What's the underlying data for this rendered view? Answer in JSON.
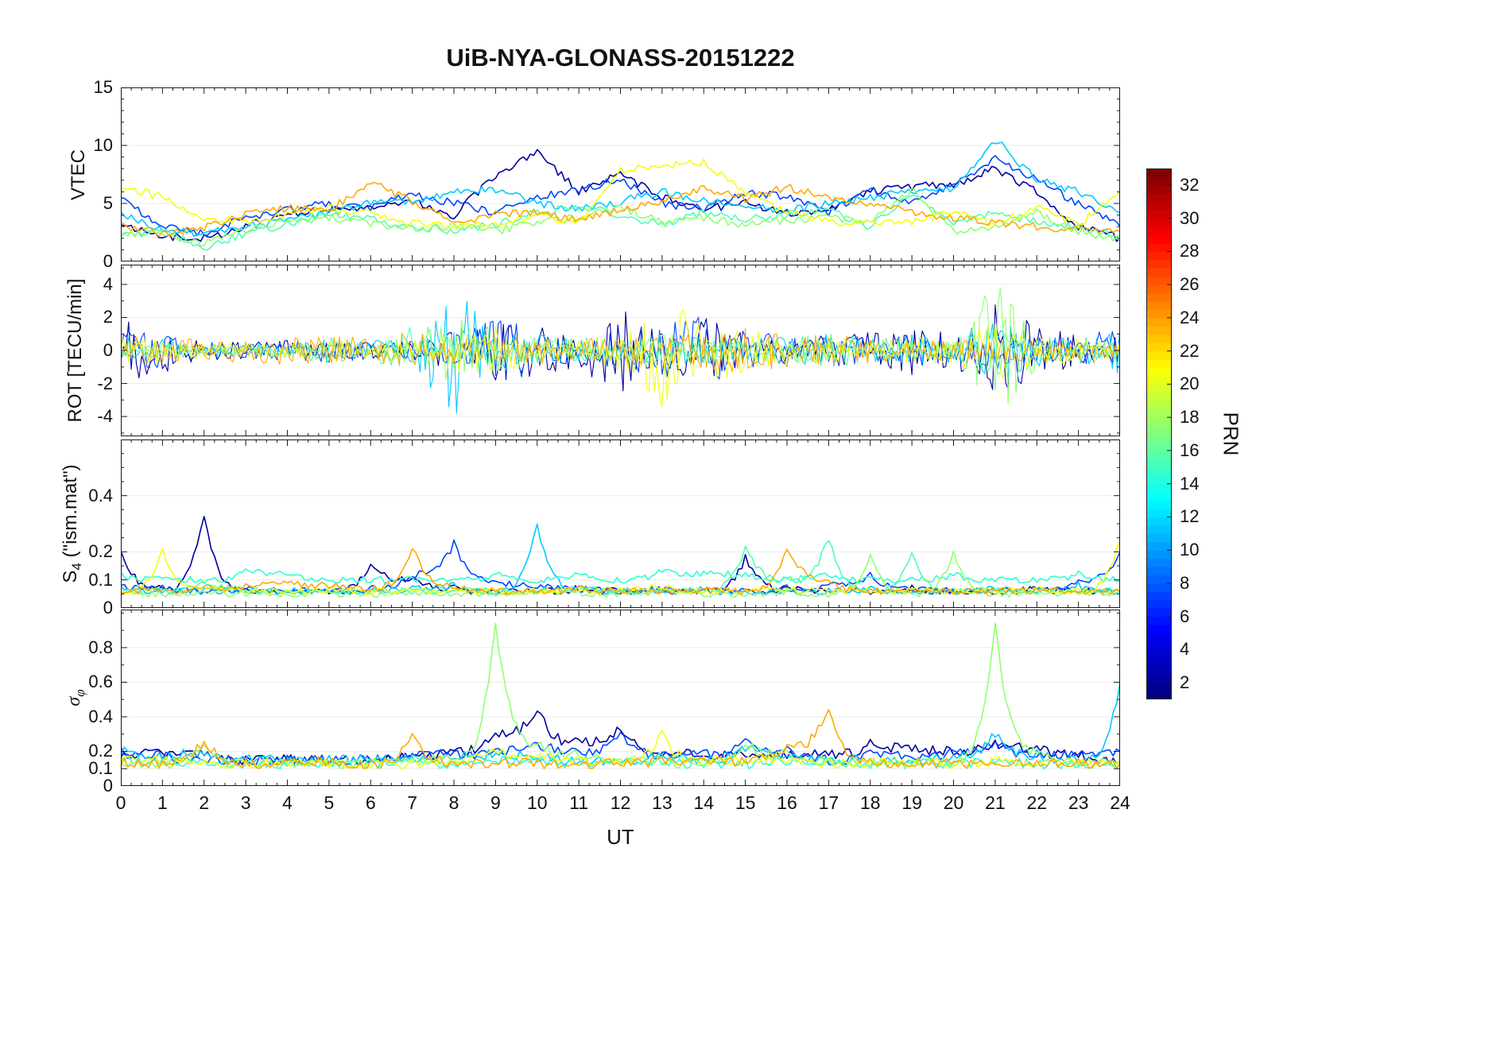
{
  "chart_data": {
    "type": "line",
    "title": "UiB-NYA-GLONASS-20151222",
    "xlabel": "UT",
    "xlim": [
      0,
      24
    ],
    "xticks": [
      0,
      1,
      2,
      3,
      4,
      5,
      6,
      7,
      8,
      9,
      10,
      11,
      12,
      13,
      14,
      15,
      16,
      17,
      18,
      19,
      20,
      21,
      22,
      23,
      24
    ],
    "x_start": 0,
    "x_step": 1,
    "colorbar": {
      "label": "PRN",
      "colormap": "jet",
      "range": [
        1,
        33
      ],
      "ticks": [
        2,
        4,
        6,
        8,
        10,
        12,
        14,
        16,
        18,
        20,
        22,
        24,
        26,
        28,
        30,
        32
      ]
    },
    "panels": [
      {
        "id": "vtec",
        "ylabel": {
          "main": "VTEC",
          "sub": "",
          "suffix": ""
        },
        "ylim": [
          0,
          15
        ],
        "yticks": [
          0,
          5,
          10,
          15
        ],
        "yminor": 1,
        "jitter": 0.35,
        "interp": "linear",
        "xlabels": false,
        "series": [
          {
            "prn": 2,
            "y": [
              3.0,
              2.2,
              2.0,
              3.0,
              4.2,
              4.5,
              4.8,
              5.2,
              4.0,
              7.5,
              9.5,
              6.0,
              7.5,
              5.5,
              4.5,
              5.0,
              4.2,
              4.5,
              6.0,
              6.5,
              6.5,
              8.0,
              6.0,
              3.0,
              2.0
            ]
          },
          {
            "prn": 7,
            "y": [
              5.5,
              3.0,
              2.5,
              3.8,
              4.5,
              5.0,
              4.6,
              5.8,
              5.0,
              4.2,
              5.5,
              6.2,
              7.0,
              5.0,
              4.5,
              6.0,
              5.5,
              4.2,
              6.2,
              5.0,
              6.5,
              9.0,
              7.0,
              5.0,
              3.0
            ]
          },
          {
            "prn": 11,
            "y": [
              4.0,
              2.8,
              2.4,
              3.0,
              3.6,
              4.2,
              5.0,
              5.2,
              6.0,
              6.2,
              5.0,
              4.5,
              5.2,
              6.0,
              5.2,
              4.8,
              4.4,
              5.0,
              5.5,
              6.0,
              6.2,
              10.5,
              7.0,
              6.0,
              4.2
            ]
          },
          {
            "prn": 15,
            "y": [
              2.2,
              2.6,
              1.2,
              2.4,
              3.2,
              4.0,
              3.6,
              3.0,
              2.6,
              3.2,
              4.2,
              4.8,
              4.0,
              3.2,
              4.2,
              3.6,
              4.0,
              4.4,
              3.0,
              5.8,
              3.2,
              4.2,
              3.4,
              3.0,
              2.2
            ]
          },
          {
            "prn": 17,
            "y": [
              2.6,
              2.2,
              1.6,
              2.8,
              3.4,
              3.8,
              3.2,
              2.8,
              3.0,
              2.6,
              3.4,
              3.8,
              4.6,
              3.4,
              3.8,
              3.2,
              3.6,
              3.8,
              3.4,
              6.2,
              2.6,
              3.0,
              4.2,
              2.6,
              1.8
            ]
          },
          {
            "prn": 20,
            "y": [
              6.5,
              5.5,
              3.8,
              3.4,
              4.0,
              4.6,
              4.2,
              3.2,
              3.0,
              3.2,
              4.0,
              3.4,
              7.8,
              8.2,
              8.6,
              5.8,
              4.2,
              3.4,
              3.2,
              3.4,
              4.2,
              3.2,
              4.6,
              3.2,
              6.0
            ]
          },
          {
            "prn": 23,
            "y": [
              3.2,
              2.4,
              3.0,
              4.2,
              4.6,
              4.4,
              6.8,
              5.2,
              3.4,
              4.0,
              4.2,
              3.6,
              4.4,
              5.2,
              6.2,
              5.4,
              6.4,
              5.6,
              5.0,
              4.2,
              3.8,
              3.4,
              3.0,
              2.8,
              2.6
            ]
          }
        ]
      },
      {
        "id": "rot",
        "ylabel": {
          "main": "ROT [TECU/min]",
          "sub": "",
          "suffix": ""
        },
        "ylim": [
          -5.2,
          5.2
        ],
        "yticks": [
          -4,
          -2,
          0,
          2,
          4
        ],
        "yminor": 1,
        "mode": "amp",
        "interp": "linear",
        "xlabels": false,
        "series": [
          {
            "prn": 2,
            "amp": [
              1.8,
              1.5,
              0.6,
              0.5,
              0.6,
              0.5,
              0.5,
              0.6,
              1.2,
              2.0,
              1.5,
              1.0,
              3.0,
              1.2,
              2.0,
              1.0,
              0.8,
              1.0,
              1.2,
              1.5,
              1.0,
              3.5,
              1.5,
              1.0,
              0.8
            ]
          },
          {
            "prn": 7,
            "amp": [
              1.5,
              1.0,
              0.5,
              0.5,
              0.6,
              0.8,
              0.5,
              0.6,
              1.0,
              2.4,
              1.2,
              0.8,
              1.2,
              1.5,
              2.2,
              1.5,
              0.8,
              1.0,
              0.8,
              1.0,
              0.8,
              1.2,
              0.8,
              0.8,
              1.5
            ]
          },
          {
            "prn": 11,
            "amp": [
              0.8,
              0.8,
              0.4,
              0.4,
              0.5,
              0.5,
              0.6,
              0.8,
              4.2,
              1.5,
              1.0,
              0.8,
              0.8,
              1.0,
              0.8,
              0.8,
              0.8,
              1.0,
              0.8,
              1.0,
              0.8,
              2.2,
              1.0,
              0.8,
              1.4
            ]
          },
          {
            "prn": 15,
            "amp": [
              0.5,
              0.5,
              0.4,
              0.4,
              0.5,
              0.8,
              0.5,
              1.8,
              0.8,
              1.0,
              0.8,
              0.6,
              0.6,
              0.8,
              0.6,
              0.6,
              0.8,
              1.0,
              0.8,
              0.8,
              0.6,
              1.6,
              0.8,
              0.6,
              0.5
            ]
          },
          {
            "prn": 17,
            "amp": [
              0.5,
              0.5,
              0.4,
              0.4,
              0.4,
              0.6,
              0.5,
              0.8,
              2.0,
              1.4,
              0.8,
              0.6,
              0.8,
              1.2,
              0.8,
              0.6,
              0.8,
              0.8,
              0.6,
              0.8,
              0.6,
              4.5,
              1.0,
              0.6,
              0.5
            ]
          },
          {
            "prn": 20,
            "amp": [
              0.8,
              1.0,
              0.5,
              0.5,
              0.5,
              0.6,
              0.5,
              0.6,
              1.4,
              1.6,
              0.8,
              0.6,
              1.2,
              3.8,
              2.0,
              1.4,
              0.8,
              0.8,
              0.6,
              0.8,
              0.8,
              2.0,
              0.8,
              0.8,
              0.6
            ]
          },
          {
            "prn": 23,
            "amp": [
              0.8,
              0.9,
              0.6,
              0.8,
              0.9,
              0.9,
              0.9,
              1.2,
              0.8,
              0.8,
              0.8,
              0.8,
              0.8,
              1.0,
              1.2,
              1.5,
              1.2,
              1.0,
              0.8,
              0.6,
              0.6,
              0.8,
              0.6,
              0.5,
              0.5
            ]
          }
        ]
      },
      {
        "id": "s4",
        "ylabel": {
          "main": "S",
          "sub": "4",
          "suffix": " (\"ism.mat\")"
        },
        "ylim": [
          0,
          0.6
        ],
        "yticks": [
          0,
          0.1,
          0.2,
          0.4
        ],
        "yminor": 0.05,
        "jitter": 0.012,
        "interp": "sharp",
        "xlabels": false,
        "series": [
          {
            "prn": 2,
            "y": [
              0.2,
              0.07,
              0.33,
              0.06,
              0.06,
              0.06,
              0.15,
              0.1,
              0.07,
              0.06,
              0.06,
              0.07,
              0.06,
              0.06,
              0.06,
              0.18,
              0.07,
              0.06,
              0.06,
              0.07,
              0.06,
              0.06,
              0.07,
              0.06,
              0.06
            ]
          },
          {
            "prn": 7,
            "y": [
              0.08,
              0.07,
              0.06,
              0.07,
              0.06,
              0.06,
              0.07,
              0.12,
              0.23,
              0.1,
              0.08,
              0.07,
              0.06,
              0.07,
              0.06,
              0.06,
              0.07,
              0.08,
              0.12,
              0.07,
              0.06,
              0.06,
              0.07,
              0.1,
              0.2
            ]
          },
          {
            "prn": 11,
            "y": [
              0.07,
              0.06,
              0.06,
              0.06,
              0.06,
              0.06,
              0.06,
              0.07,
              0.08,
              0.06,
              0.3,
              0.07,
              0.06,
              0.06,
              0.07,
              0.06,
              0.06,
              0.06,
              0.07,
              0.06,
              0.06,
              0.07,
              0.06,
              0.08,
              0.06
            ]
          },
          {
            "prn": 14,
            "y": [
              0.12,
              0.1,
              0.1,
              0.14,
              0.12,
              0.1,
              0.1,
              0.1,
              0.1,
              0.12,
              0.1,
              0.12,
              0.1,
              0.14,
              0.12,
              0.12,
              0.1,
              0.12,
              0.1,
              0.1,
              0.12,
              0.1,
              0.1,
              0.12,
              0.1
            ]
          },
          {
            "prn": 15,
            "y": [
              0.06,
              0.06,
              0.1,
              0.07,
              0.06,
              0.06,
              0.06,
              0.06,
              0.07,
              0.06,
              0.06,
              0.07,
              0.06,
              0.06,
              0.06,
              0.22,
              0.1,
              0.25,
              0.06,
              0.2,
              0.06,
              0.07,
              0.06,
              0.06,
              0.06
            ]
          },
          {
            "prn": 17,
            "y": [
              0.05,
              0.05,
              0.06,
              0.05,
              0.05,
              0.05,
              0.05,
              0.06,
              0.05,
              0.05,
              0.06,
              0.05,
              0.05,
              0.06,
              0.05,
              0.05,
              0.06,
              0.05,
              0.18,
              0.05,
              0.2,
              0.05,
              0.05,
              0.06,
              0.05
            ]
          },
          {
            "prn": 20,
            "y": [
              0.06,
              0.2,
              0.07,
              0.06,
              0.06,
              0.07,
              0.06,
              0.06,
              0.07,
              0.06,
              0.06,
              0.06,
              0.07,
              0.08,
              0.06,
              0.06,
              0.07,
              0.06,
              0.06,
              0.07,
              0.06,
              0.06,
              0.07,
              0.06,
              0.24
            ]
          },
          {
            "prn": 23,
            "y": [
              0.06,
              0.06,
              0.07,
              0.08,
              0.1,
              0.08,
              0.07,
              0.22,
              0.08,
              0.06,
              0.06,
              0.07,
              0.06,
              0.06,
              0.07,
              0.06,
              0.22,
              0.1,
              0.06,
              0.06,
              0.06,
              0.06,
              0.06,
              0.06,
              0.06
            ]
          }
        ]
      },
      {
        "id": "sigma_phi",
        "ylabel": {
          "main": "σ",
          "sub": "φ",
          "suffix": ""
        },
        "ylim": [
          0,
          1.02
        ],
        "yticks": [
          0,
          0.1,
          0.2,
          0.4,
          0.6,
          0.8
        ],
        "yminor": 0.1,
        "jitter": 0.03,
        "interp": "sharp",
        "xlabels": true,
        "series": [
          {
            "prn": 2,
            "y": [
              0.18,
              0.2,
              0.18,
              0.15,
              0.15,
              0.15,
              0.15,
              0.18,
              0.2,
              0.3,
              0.45,
              0.25,
              0.35,
              0.2,
              0.18,
              0.2,
              0.18,
              0.18,
              0.25,
              0.22,
              0.2,
              0.25,
              0.22,
              0.18,
              0.15
            ]
          },
          {
            "prn": 7,
            "y": [
              0.2,
              0.18,
              0.15,
              0.15,
              0.15,
              0.15,
              0.15,
              0.18,
              0.18,
              0.2,
              0.25,
              0.2,
              0.3,
              0.18,
              0.18,
              0.25,
              0.2,
              0.15,
              0.18,
              0.18,
              0.2,
              0.25,
              0.18,
              0.18,
              0.2
            ]
          },
          {
            "prn": 11,
            "y": [
              0.2,
              0.18,
              0.2,
              0.15,
              0.15,
              0.15,
              0.15,
              0.15,
              0.18,
              0.18,
              0.18,
              0.15,
              0.15,
              0.18,
              0.15,
              0.22,
              0.18,
              0.15,
              0.15,
              0.15,
              0.18,
              0.3,
              0.18,
              0.15,
              0.6
            ]
          },
          {
            "prn": 14,
            "y": [
              0.15,
              0.15,
              0.13,
              0.13,
              0.13,
              0.13,
              0.13,
              0.15,
              0.13,
              0.15,
              0.15,
              0.13,
              0.13,
              0.15,
              0.13,
              0.13,
              0.15,
              0.15,
              0.13,
              0.13,
              0.13,
              0.15,
              0.13,
              0.13,
              0.13
            ]
          },
          {
            "prn": 17,
            "y": [
              0.13,
              0.13,
              0.25,
              0.13,
              0.13,
              0.13,
              0.13,
              0.15,
              0.15,
              0.95,
              0.25,
              0.18,
              0.15,
              0.15,
              0.13,
              0.25,
              0.18,
              0.15,
              0.13,
              0.13,
              0.15,
              0.95,
              0.2,
              0.13,
              0.13
            ]
          },
          {
            "prn": 20,
            "y": [
              0.15,
              0.15,
              0.15,
              0.13,
              0.13,
              0.13,
              0.13,
              0.13,
              0.15,
              0.2,
              0.18,
              0.15,
              0.15,
              0.3,
              0.15,
              0.15,
              0.15,
              0.13,
              0.13,
              0.13,
              0.13,
              0.15,
              0.13,
              0.13,
              0.15
            ]
          },
          {
            "prn": 23,
            "y": [
              0.13,
              0.13,
              0.28,
              0.13,
              0.14,
              0.14,
              0.13,
              0.3,
              0.14,
              0.13,
              0.13,
              0.13,
              0.13,
              0.14,
              0.14,
              0.15,
              0.22,
              0.47,
              0.14,
              0.13,
              0.13,
              0.13,
              0.13,
              0.13,
              0.13
            ]
          }
        ]
      }
    ]
  }
}
